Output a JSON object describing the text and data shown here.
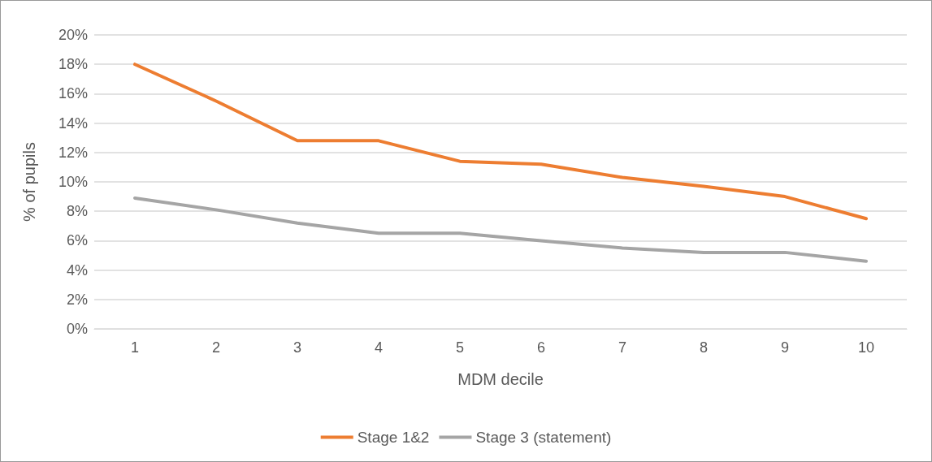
{
  "chart_data": {
    "type": "line",
    "xlabel": "MDM decile",
    "ylabel": "% of pupils",
    "categories": [
      "1",
      "2",
      "3",
      "4",
      "5",
      "6",
      "7",
      "8",
      "9",
      "10"
    ],
    "series": [
      {
        "name": "Stage 1&2",
        "color": "#ed7d31",
        "values": [
          18.0,
          15.5,
          12.8,
          12.8,
          11.4,
          11.2,
          10.3,
          9.7,
          9.0,
          7.5
        ]
      },
      {
        "name": "Stage 3 (statement)",
        "color": "#a5a5a5",
        "values": [
          8.9,
          8.1,
          7.2,
          6.5,
          6.5,
          6.0,
          5.5,
          5.2,
          5.2,
          4.6
        ]
      }
    ],
    "ylim": [
      0,
      20
    ],
    "yticks": [
      {
        "value": 0,
        "label": "0%"
      },
      {
        "value": 2,
        "label": "2%"
      },
      {
        "value": 4,
        "label": "4%"
      },
      {
        "value": 6,
        "label": "6%"
      },
      {
        "value": 8,
        "label": "8%"
      },
      {
        "value": 10,
        "label": "10%"
      },
      {
        "value": 12,
        "label": "12%"
      },
      {
        "value": 14,
        "label": "14%"
      },
      {
        "value": 16,
        "label": "16%"
      },
      {
        "value": 18,
        "label": "18%"
      },
      {
        "value": 20,
        "label": "20%"
      }
    ],
    "grid": "y",
    "legend": "bottom",
    "marker": "none",
    "line_style": "solid"
  }
}
